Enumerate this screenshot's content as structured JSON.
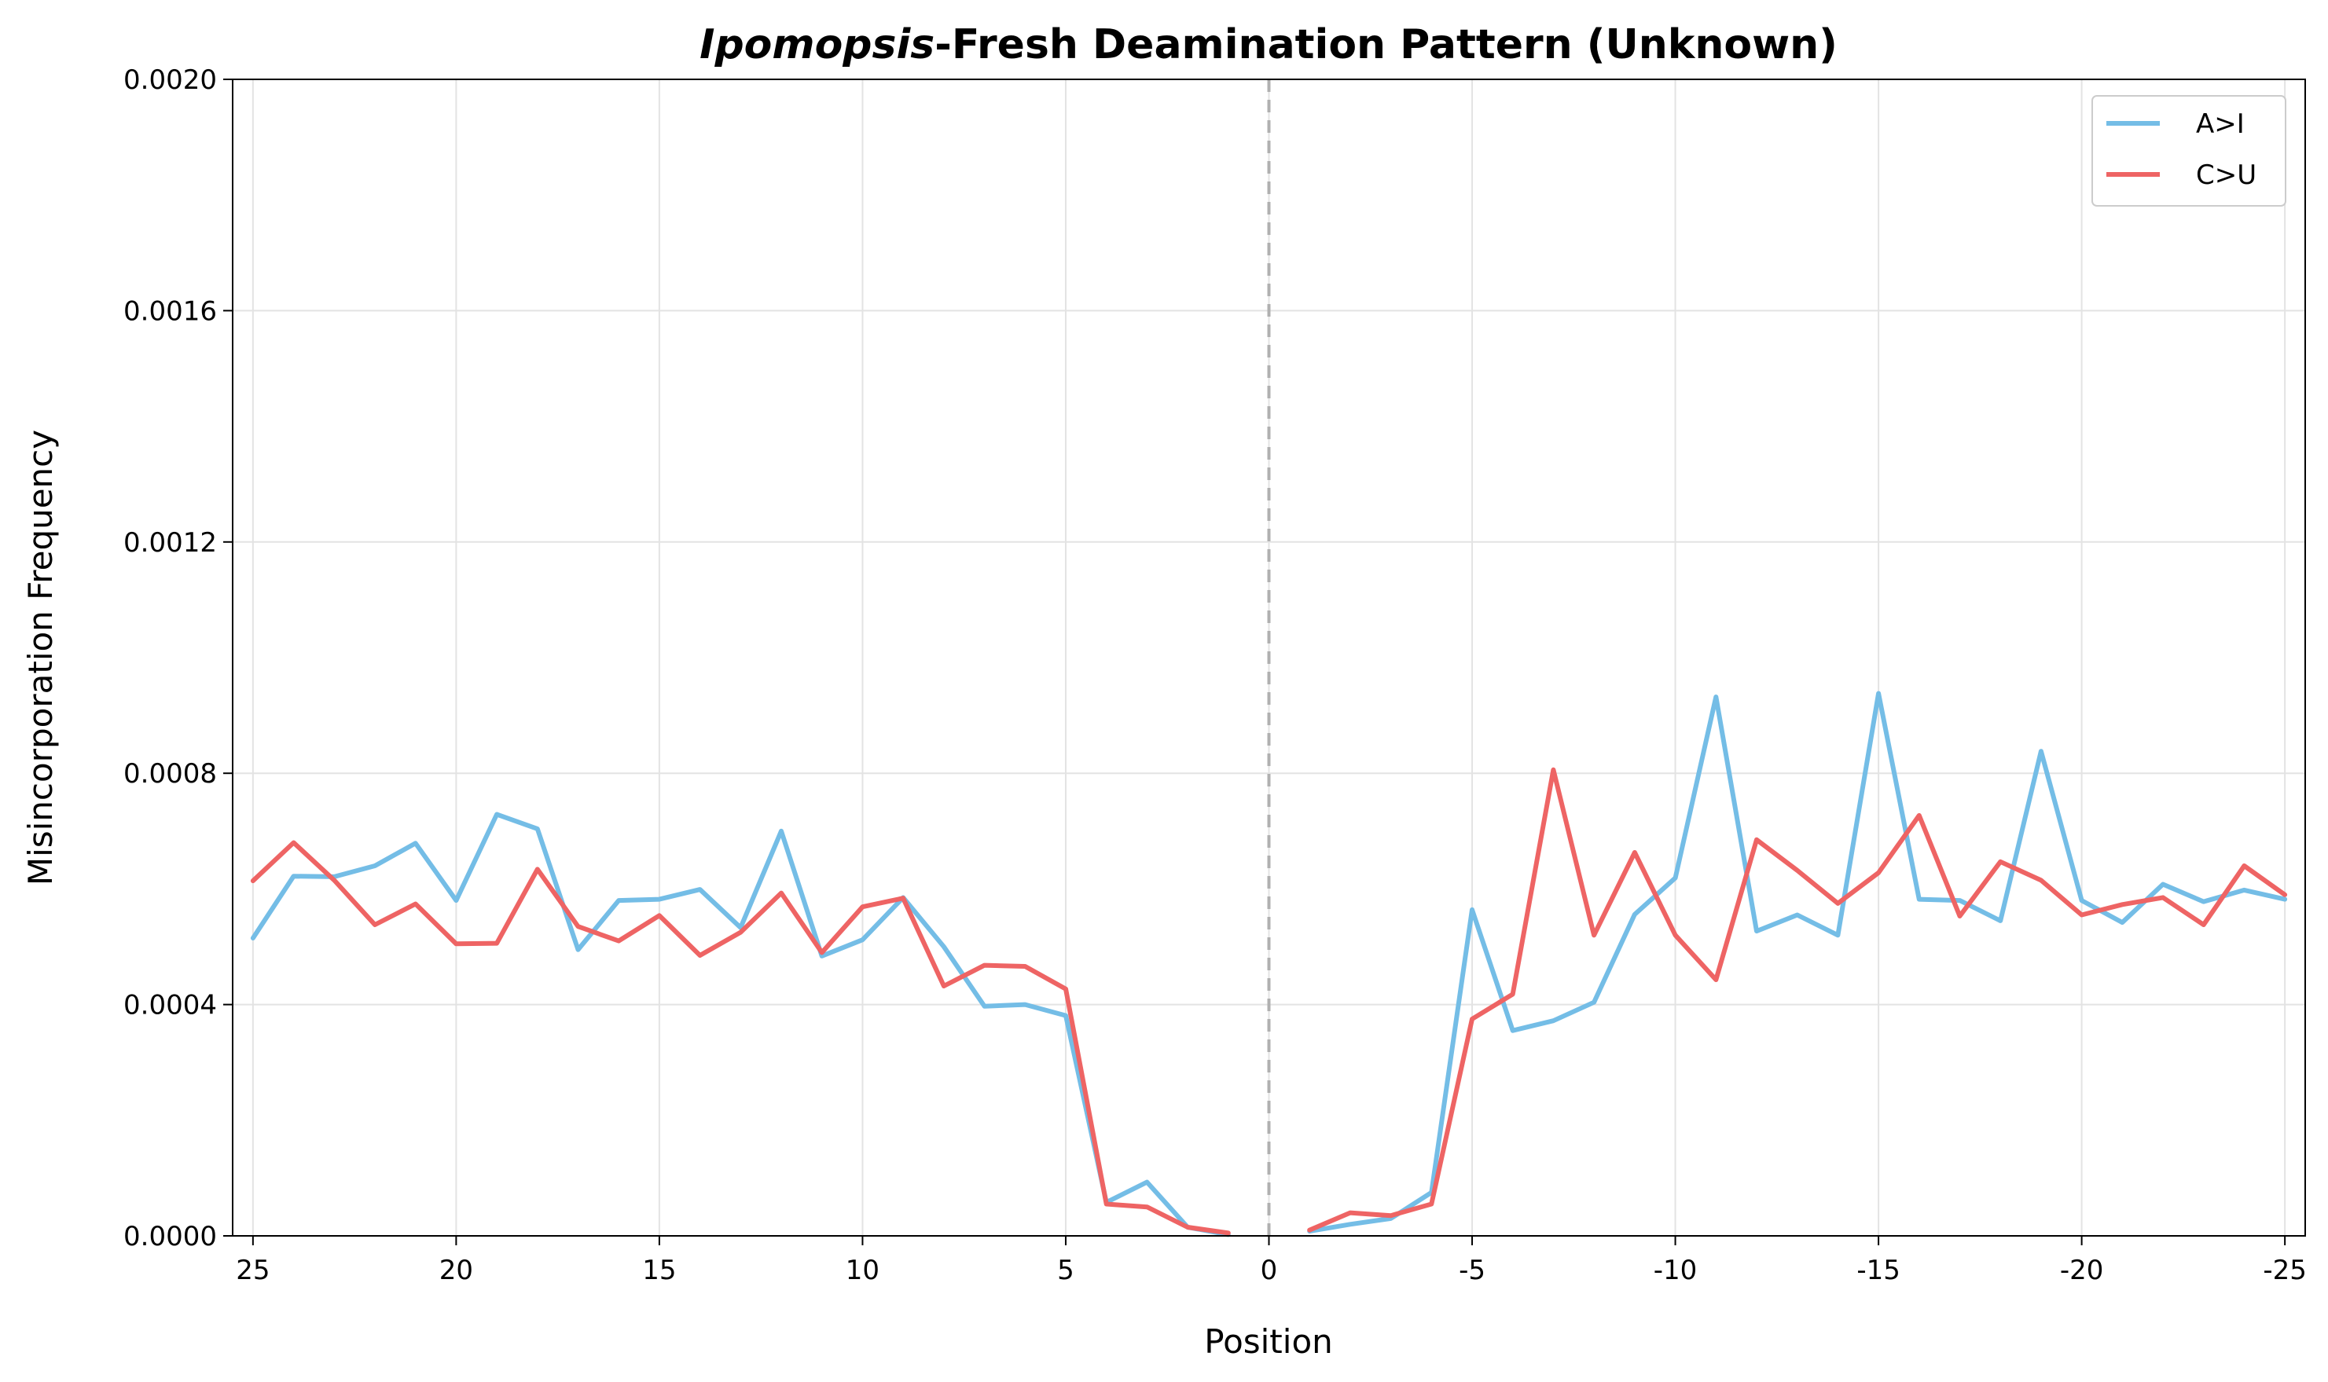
{
  "chart_data": {
    "type": "line",
    "title": {
      "italic_part": "Ipomopsis",
      "rest": "-Fresh Deamination Pattern (Unknown)"
    },
    "xlabel": "Position",
    "ylabel": "Misincorporation Frequency",
    "ylim": [
      0,
      0.002
    ],
    "yticks": [
      "0.0000",
      "0.0004",
      "0.0008",
      "0.0012",
      "0.0016",
      "0.0020"
    ],
    "xticks": [
      {
        "pos": 25,
        "label": "25"
      },
      {
        "pos": 20,
        "label": "20"
      },
      {
        "pos": 15,
        "label": "15"
      },
      {
        "pos": 10,
        "label": "10"
      },
      {
        "pos": 5,
        "label": "5"
      },
      {
        "pos": 0,
        "label": "0"
      },
      {
        "pos": -5,
        "label": "-5"
      },
      {
        "pos": -10,
        "label": "-10"
      },
      {
        "pos": -15,
        "label": "-15"
      },
      {
        "pos": -20,
        "label": "-20"
      },
      {
        "pos": -25,
        "label": "-25"
      }
    ],
    "x_direction": "decreasing",
    "grid": true,
    "legend_position": "top-right",
    "reference_line": {
      "x": 0,
      "style": "dashed",
      "color": "#b0b0b0"
    },
    "segments": [
      {
        "x": [
          25,
          24,
          23,
          22,
          21,
          20,
          19,
          18,
          17,
          16,
          15,
          14,
          13,
          12,
          11,
          10,
          9,
          8,
          7,
          6,
          5,
          4,
          3,
          2,
          1
        ]
      },
      {
        "x": [
          -1,
          -2,
          -3,
          -4,
          -5,
          -6,
          -7,
          -8,
          -9,
          -10,
          -11,
          -12,
          -13,
          -14,
          -15,
          -16,
          -17,
          -18,
          -19,
          -20,
          -21,
          -22,
          -23,
          -24,
          -25
        ]
      }
    ],
    "series": [
      {
        "name": "A>I",
        "color": "#74BDE6",
        "values": [
          [
            0.000515,
            0.000622,
            0.000621,
            0.00064,
            0.000679,
            0.00058,
            0.000729,
            0.000704,
            0.000495,
            0.00058,
            0.000582,
            0.000599,
            0.000533,
            0.0007,
            0.000484,
            0.000512,
            0.000585,
            0.0005,
            0.000397,
            0.0004,
            0.000381,
            5.8e-05,
            9.3e-05,
            1.5e-05,
            2e-06
          ],
          [
            8e-06,
            2e-05,
            3e-05,
            7.5e-05,
            0.000564,
            0.000355,
            0.000372,
            0.000404,
            0.000556,
            0.000619,
            0.000932,
            0.000527,
            0.000555,
            0.00052,
            0.000938,
            0.000582,
            0.00058,
            0.000545,
            0.000838,
            0.00058,
            0.000542,
            0.000608,
            0.000578,
            0.000598,
            0.000582
          ]
        ]
      },
      {
        "name": "C>U",
        "color": "#EE6464",
        "values": [
          [
            0.000614,
            0.00068,
            0.000615,
            0.000538,
            0.000574,
            0.000505,
            0.000506,
            0.000634,
            0.000535,
            0.00051,
            0.000554,
            0.000485,
            0.000525,
            0.000593,
            0.00049,
            0.000569,
            0.000584,
            0.000432,
            0.000468,
            0.000466,
            0.000427,
            5.5e-05,
            5e-05,
            1.5e-05,
            5e-06
          ],
          [
            1e-05,
            4e-05,
            3.5e-05,
            5.5e-05,
            0.000375,
            0.000418,
            0.000806,
            0.00052,
            0.000663,
            0.00052,
            0.000443,
            0.000685,
            0.000632,
            0.000575,
            0.000628,
            0.000727,
            0.000553,
            0.000647,
            0.000615,
            0.000555,
            0.000573,
            0.000585,
            0.000538,
            0.00064,
            0.00059
          ]
        ]
      }
    ]
  }
}
